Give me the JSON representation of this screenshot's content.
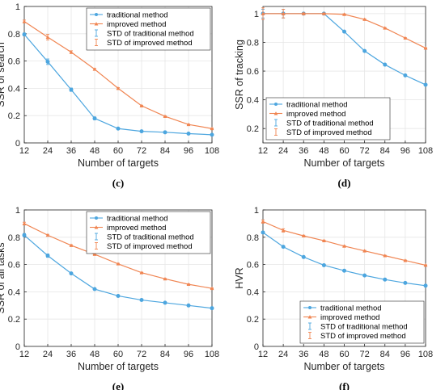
{
  "colors": {
    "traditional": "#4da6df",
    "improved": "#f08552",
    "axis": "#262626",
    "grid": "#e6e6e6"
  },
  "chart_data": [
    {
      "type": "line",
      "caption": "(c)",
      "xlabel": "Number of targets",
      "ylabel": "SSR of search",
      "x": [
        12,
        24,
        36,
        48,
        60,
        72,
        84,
        96,
        108
      ],
      "xlim": [
        12,
        108
      ],
      "ylim": [
        0,
        1
      ],
      "xticks": [
        "12",
        "24",
        "36",
        "48",
        "60",
        "72",
        "84",
        "96",
        "108"
      ],
      "yticks": [
        "0",
        "0.2",
        "0.4",
        "0.6",
        "0.8",
        "1"
      ],
      "grid": true,
      "legend_position": "top-right",
      "series": [
        {
          "name": "traditional method",
          "values": [
            0.795,
            0.595,
            0.39,
            0.18,
            0.105,
            0.085,
            0.078,
            0.068,
            0.06
          ],
          "error": [
            0.01,
            0.02,
            0.012,
            0.01,
            0.005,
            0.004,
            0.003,
            0.003,
            0.003
          ]
        },
        {
          "name": "improved method",
          "values": [
            0.89,
            0.775,
            0.665,
            0.54,
            0.4,
            0.272,
            0.195,
            0.135,
            0.105
          ],
          "error": [
            0.01,
            0.02,
            0.01,
            0.006,
            0.005,
            0.004,
            0.003,
            0.003,
            0.003
          ]
        }
      ],
      "error_legend": [
        "STD of traditional method",
        "STD of improved method"
      ]
    },
    {
      "type": "line",
      "caption": "(d)",
      "xlabel": "Number of targets",
      "ylabel": "SSR of tracking",
      "x": [
        12,
        24,
        36,
        48,
        60,
        72,
        84,
        96,
        108
      ],
      "xlim": [
        12,
        108
      ],
      "ylim": [
        0.1,
        1.05
      ],
      "xticks": [
        "12",
        "24",
        "36",
        "48",
        "60",
        "72",
        "84",
        "96",
        "108"
      ],
      "yticks": [
        "0.2",
        "0.4",
        "0.6",
        "0.8",
        "1"
      ],
      "grid": true,
      "legend_position": "bottom-left",
      "series": [
        {
          "name": "traditional method",
          "values": [
            1.0,
            1.0,
            1.0,
            1.0,
            0.875,
            0.74,
            0.645,
            0.57,
            0.505
          ],
          "error": [
            0.03,
            0.03,
            0.005,
            0.004,
            0.004,
            0.004,
            0.003,
            0.003,
            0.003
          ]
        },
        {
          "name": "improved method",
          "values": [
            1.0,
            1.0,
            1.0,
            1.0,
            0.995,
            0.96,
            0.9,
            0.83,
            0.76
          ],
          "error": [
            0.04,
            0.03,
            0.005,
            0.004,
            0.004,
            0.004,
            0.003,
            0.003,
            0.003
          ]
        }
      ],
      "error_legend": [
        "STD of traditional method",
        "STD of improved method"
      ]
    },
    {
      "type": "line",
      "caption": "(e)",
      "xlabel": "Number of targets",
      "ylabel": "SSR of all tasks",
      "x": [
        12,
        24,
        36,
        48,
        60,
        72,
        84,
        96,
        108
      ],
      "xlim": [
        12,
        108
      ],
      "ylim": [
        0,
        1
      ],
      "xticks": [
        "12",
        "24",
        "36",
        "48",
        "60",
        "72",
        "84",
        "96",
        "108"
      ],
      "yticks": [
        "0",
        "0.2",
        "0.4",
        "0.6",
        "0.8",
        "1"
      ],
      "grid": true,
      "legend_position": "top-right",
      "series": [
        {
          "name": "traditional method",
          "values": [
            0.815,
            0.665,
            0.535,
            0.42,
            0.37,
            0.34,
            0.32,
            0.3,
            0.28
          ],
          "error": [
            0.012,
            0.012,
            0.006,
            0.005,
            0.004,
            0.004,
            0.003,
            0.003,
            0.003
          ]
        },
        {
          "name": "improved method",
          "values": [
            0.9,
            0.815,
            0.74,
            0.675,
            0.605,
            0.54,
            0.495,
            0.455,
            0.425
          ],
          "error": [
            0.01,
            0.006,
            0.005,
            0.004,
            0.004,
            0.004,
            0.003,
            0.003,
            0.003
          ]
        }
      ],
      "error_legend": [
        "STD of traditional method",
        "STD of improved method"
      ]
    },
    {
      "type": "line",
      "caption": "(f)",
      "xlabel": "Number of targets",
      "ylabel": "HVR",
      "x": [
        12,
        24,
        36,
        48,
        60,
        72,
        84,
        96,
        108
      ],
      "xlim": [
        12,
        108
      ],
      "ylim": [
        0,
        1
      ],
      "xticks": [
        "12",
        "24",
        "36",
        "48",
        "60",
        "72",
        "84",
        "96",
        "108"
      ],
      "yticks": [
        "0",
        "0.2",
        "0.4",
        "0.6",
        "0.8",
        "1"
      ],
      "grid": true,
      "legend_position": "bottom-right",
      "series": [
        {
          "name": "traditional method",
          "values": [
            0.835,
            0.73,
            0.655,
            0.595,
            0.555,
            0.52,
            0.49,
            0.465,
            0.445
          ],
          "error": [
            0.008,
            0.006,
            0.005,
            0.004,
            0.004,
            0.004,
            0.003,
            0.003,
            0.003
          ]
        },
        {
          "name": "improved method",
          "values": [
            0.915,
            0.85,
            0.81,
            0.775,
            0.735,
            0.7,
            0.665,
            0.63,
            0.595
          ],
          "error": [
            0.012,
            0.012,
            0.005,
            0.004,
            0.004,
            0.004,
            0.003,
            0.003,
            0.003
          ]
        }
      ],
      "error_legend": [
        "STD of traditional method",
        "STD of improved method"
      ]
    }
  ]
}
